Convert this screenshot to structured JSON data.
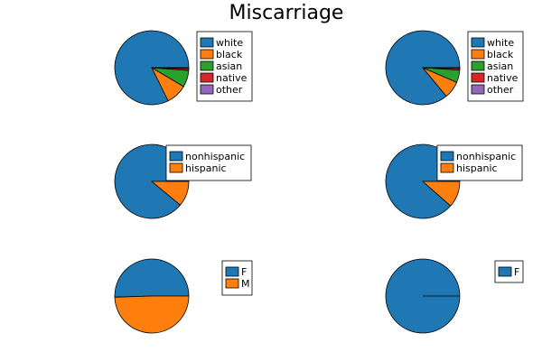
{
  "title": "Miscarriage",
  "colors": {
    "series": [
      "#1f77b4",
      "#ff7f0e",
      "#2ca02c",
      "#d62728",
      "#9467bd"
    ],
    "stroke": "#000000",
    "background": "#ffffff"
  },
  "chart_data": [
    {
      "type": "pie",
      "panel": "top-left",
      "categories": [
        "white",
        "black",
        "asian",
        "native",
        "other"
      ],
      "values": [
        0.823,
        0.092,
        0.073,
        0.008,
        0.004
      ],
      "legend": "right"
    },
    {
      "type": "pie",
      "panel": "top-right",
      "categories": [
        "white",
        "black",
        "asian",
        "native",
        "other"
      ],
      "values": [
        0.86,
        0.075,
        0.055,
        0.007,
        0.003
      ],
      "legend": "right"
    },
    {
      "type": "pie",
      "panel": "middle-left",
      "categories": [
        "nonhispanic",
        "hispanic"
      ],
      "values": [
        0.89,
        0.11
      ],
      "legend": "top-right"
    },
    {
      "type": "pie",
      "panel": "middle-right",
      "categories": [
        "nonhispanic",
        "hispanic"
      ],
      "values": [
        0.885,
        0.115
      ],
      "legend": "top-right"
    },
    {
      "type": "pie",
      "panel": "bottom-left",
      "categories": [
        "F",
        "M"
      ],
      "values": [
        0.505,
        0.495
      ],
      "legend": "top-right"
    },
    {
      "type": "pie",
      "panel": "bottom-right",
      "categories": [
        "F"
      ],
      "values": [
        1.0
      ],
      "legend": "top-right"
    }
  ]
}
